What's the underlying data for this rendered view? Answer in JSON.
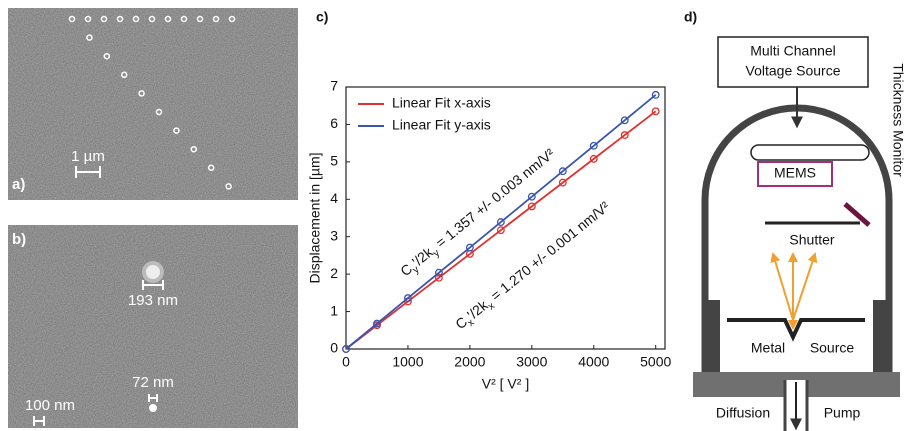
{
  "panel_a": {
    "label": "a)",
    "scale_bar": "1 µm"
  },
  "panel_b": {
    "label": "b)",
    "labels": [
      "193 nm",
      "72 nm",
      "100 nm"
    ]
  },
  "chart_data": {
    "type": "line",
    "panel_label": "c)",
    "xlabel": "V² [ V² ]",
    "ylabel": "Displacement in [µm]",
    "x": [
      0,
      500,
      1000,
      1500,
      2000,
      2500,
      3000,
      3500,
      4000,
      4500,
      5000
    ],
    "series": [
      {
        "name": "Linear Fit x-axis",
        "color": "#e03030",
        "values": [
          0,
          0.635,
          1.27,
          1.905,
          2.54,
          3.175,
          3.81,
          4.445,
          5.08,
          5.715,
          6.35
        ]
      },
      {
        "name": "Linear Fit y-axis",
        "color": "#3a55b0",
        "values": [
          0,
          0.68,
          1.36,
          2.04,
          2.71,
          3.39,
          4.07,
          4.75,
          5.43,
          6.11,
          6.79
        ]
      }
    ],
    "annotations": [
      [
        "C",
        "y",
        "'/2k",
        "y",
        " = 1.357 +/- 0.003  nm/V²"
      ],
      [
        "C",
        "x",
        "'/2k",
        "x",
        " = 1.270 +/- 0.001  nm/V²"
      ]
    ],
    "xlim": [
      0,
      5150
    ],
    "ylim": [
      0,
      7
    ],
    "xticks": [
      0,
      1000,
      2000,
      3000,
      4000,
      5000
    ],
    "yticks": [
      0,
      1,
      2,
      3,
      4,
      5,
      6,
      7
    ],
    "legend": "upper left"
  },
  "panel_d": {
    "label": "d)",
    "voltage_source": [
      "Multi Channel",
      "Voltage Source"
    ],
    "mems": "MEMS",
    "monitor": "Thickness Monitor",
    "shutter": "Shutter",
    "source": [
      "Metal",
      "Source"
    ],
    "pump": [
      "Diffusion",
      "Pump"
    ]
  }
}
